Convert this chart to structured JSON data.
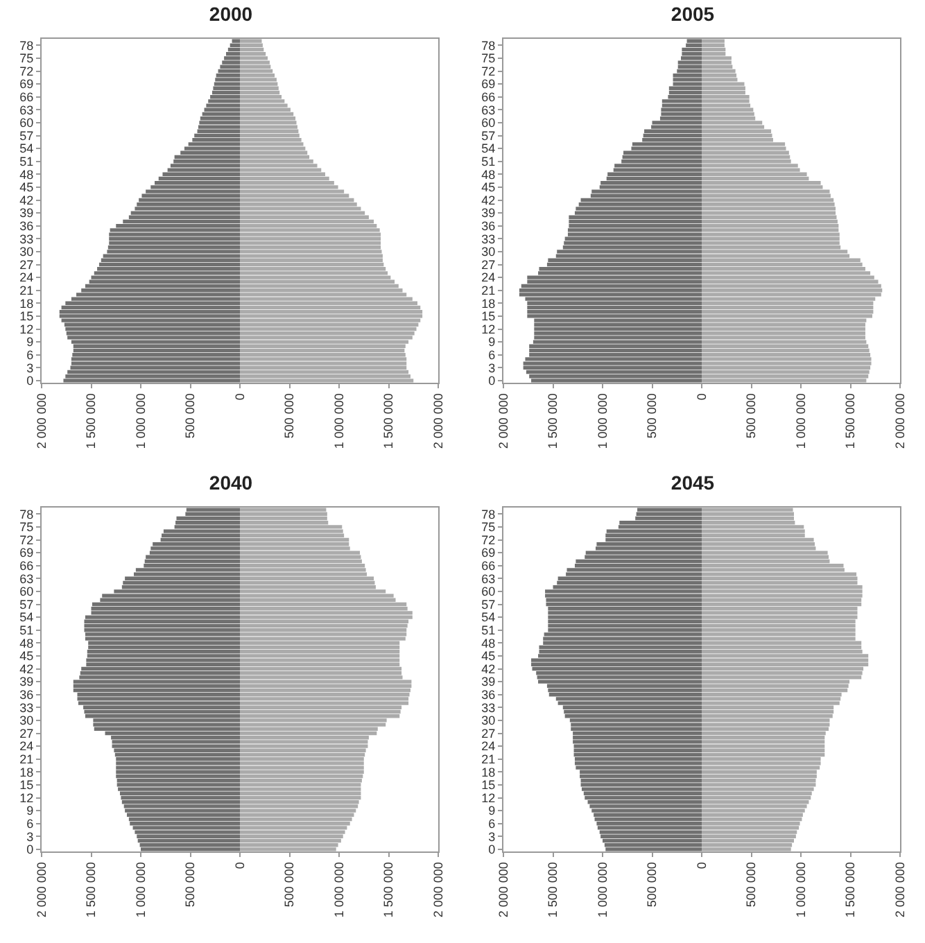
{
  "chart_data": [
    {
      "type": "bar",
      "title": "2000",
      "orientation": "horizontal",
      "stacked": true,
      "xlim": [
        -2000000,
        2000000
      ],
      "xticks": [
        {
          "value": -2000000,
          "label": "2 000 000"
        },
        {
          "value": -1500000,
          "label": "1 500 000"
        },
        {
          "value": -1000000,
          "label": "1 000 000"
        },
        {
          "value": -500000,
          "label": "500 000"
        },
        {
          "value": 0,
          "label": "0"
        },
        {
          "value": 500000,
          "label": "500 000"
        },
        {
          "value": 1000000,
          "label": "1 000 000"
        },
        {
          "value": 1500000,
          "label": "1 500 000"
        },
        {
          "value": 2000000,
          "label": "2 000 000"
        }
      ],
      "categories": [
        null,
        "78",
        null,
        null,
        "75",
        null,
        null,
        "72",
        null,
        null,
        "69",
        null,
        null,
        "66",
        null,
        null,
        "63",
        null,
        null,
        "60",
        null,
        null,
        "57",
        null,
        null,
        "54",
        null,
        null,
        "51",
        null,
        null,
        "48",
        null,
        null,
        "45",
        null,
        null,
        "42",
        null,
        null,
        "39",
        null,
        null,
        "36",
        null,
        null,
        "33",
        null,
        null,
        "30",
        null,
        null,
        "27",
        null,
        null,
        "24",
        null,
        null,
        "21",
        null,
        null,
        "18",
        null,
        null,
        "15",
        null,
        null,
        "12",
        null,
        null,
        "9",
        null,
        null,
        "6",
        null,
        null,
        "3",
        null,
        null,
        "0"
      ],
      "series": [
        {
          "color": "#707070",
          "values": [
            -80000,
            -100000,
            -120000,
            -140000,
            -160000,
            -180000,
            -200000,
            -220000,
            -240000,
            -250000,
            -260000,
            -270000,
            -280000,
            -300000,
            -320000,
            -340000,
            -360000,
            -380000,
            -400000,
            -410000,
            -420000,
            -430000,
            -460000,
            -480000,
            -520000,
            -560000,
            -600000,
            -660000,
            -670000,
            -700000,
            -730000,
            -780000,
            -820000,
            -860000,
            -900000,
            -950000,
            -990000,
            -1020000,
            -1040000,
            -1060000,
            -1100000,
            -1120000,
            -1180000,
            -1250000,
            -1310000,
            -1320000,
            -1320000,
            -1320000,
            -1330000,
            -1340000,
            -1380000,
            -1400000,
            -1420000,
            -1440000,
            -1470000,
            -1500000,
            -1520000,
            -1560000,
            -1600000,
            -1650000,
            -1700000,
            -1760000,
            -1800000,
            -1820000,
            -1820000,
            -1800000,
            -1770000,
            -1760000,
            -1750000,
            -1740000,
            -1700000,
            -1680000,
            -1680000,
            -1690000,
            -1700000,
            -1700000,
            -1710000,
            -1740000,
            -1760000,
            -1780000
          ]
        },
        {
          "color": "#ababab",
          "values": [
            220000,
            230000,
            240000,
            260000,
            280000,
            300000,
            310000,
            330000,
            350000,
            370000,
            380000,
            390000,
            400000,
            420000,
            450000,
            480000,
            510000,
            540000,
            560000,
            570000,
            580000,
            590000,
            600000,
            620000,
            640000,
            660000,
            680000,
            700000,
            740000,
            780000,
            820000,
            860000,
            900000,
            950000,
            990000,
            1050000,
            1100000,
            1150000,
            1180000,
            1220000,
            1260000,
            1300000,
            1350000,
            1380000,
            1410000,
            1420000,
            1420000,
            1420000,
            1420000,
            1430000,
            1440000,
            1440000,
            1450000,
            1470000,
            1490000,
            1520000,
            1560000,
            1600000,
            1640000,
            1680000,
            1740000,
            1790000,
            1820000,
            1840000,
            1840000,
            1820000,
            1800000,
            1780000,
            1760000,
            1740000,
            1700000,
            1670000,
            1660000,
            1670000,
            1680000,
            1680000,
            1680000,
            1700000,
            1720000,
            1750000
          ]
        }
      ]
    },
    {
      "type": "bar",
      "title": "2005",
      "orientation": "horizontal",
      "stacked": true,
      "xlim": [
        -2000000,
        2000000
      ],
      "xticks": [
        {
          "value": -2000000,
          "label": "2 000 000"
        },
        {
          "value": -1500000,
          "label": "1 500 000"
        },
        {
          "value": -1000000,
          "label": "1 000 000"
        },
        {
          "value": -500000,
          "label": "500 000"
        },
        {
          "value": 0,
          "label": "0"
        },
        {
          "value": 500000,
          "label": "500 000"
        },
        {
          "value": 1000000,
          "label": "1 000 000"
        },
        {
          "value": 1500000,
          "label": "1 500 000"
        },
        {
          "value": 2000000,
          "label": "2 000 000"
        }
      ],
      "categories": [
        null,
        "78",
        null,
        null,
        "75",
        null,
        null,
        "72",
        null,
        null,
        "69",
        null,
        null,
        "66",
        null,
        null,
        "63",
        null,
        null,
        "60",
        null,
        null,
        "57",
        null,
        null,
        "54",
        null,
        null,
        "51",
        null,
        null,
        "48",
        null,
        null,
        "45",
        null,
        null,
        "42",
        null,
        null,
        "39",
        null,
        null,
        "36",
        null,
        null,
        "33",
        null,
        null,
        "30",
        null,
        null,
        "27",
        null,
        null,
        "24",
        null,
        null,
        "21",
        null,
        null,
        "18",
        null,
        null,
        "15",
        null,
        null,
        "12",
        null,
        null,
        "9",
        null,
        null,
        "6",
        null,
        null,
        "3",
        null,
        null,
        "0"
      ],
      "series": [
        {
          "color": "#707070",
          "values": [
            -150000,
            -160000,
            -200000,
            -200000,
            -210000,
            -240000,
            -240000,
            -250000,
            -290000,
            -290000,
            -290000,
            -330000,
            -330000,
            -340000,
            -400000,
            -400000,
            -410000,
            -410000,
            -420000,
            -500000,
            -510000,
            -580000,
            -590000,
            -600000,
            -700000,
            -710000,
            -790000,
            -800000,
            -810000,
            -880000,
            -890000,
            -950000,
            -960000,
            -1020000,
            -1030000,
            -1110000,
            -1120000,
            -1220000,
            -1240000,
            -1270000,
            -1280000,
            -1340000,
            -1340000,
            -1340000,
            -1350000,
            -1350000,
            -1380000,
            -1390000,
            -1400000,
            -1460000,
            -1470000,
            -1550000,
            -1560000,
            -1640000,
            -1650000,
            -1760000,
            -1760000,
            -1820000,
            -1840000,
            -1840000,
            -1780000,
            -1760000,
            -1760000,
            -1760000,
            -1760000,
            -1690000,
            -1690000,
            -1690000,
            -1690000,
            -1690000,
            -1700000,
            -1740000,
            -1740000,
            -1740000,
            -1780000,
            -1800000,
            -1800000,
            -1770000,
            -1740000,
            -1720000
          ]
        },
        {
          "color": "#ababab",
          "values": [
            230000,
            230000,
            240000,
            240000,
            300000,
            300000,
            310000,
            340000,
            350000,
            360000,
            430000,
            440000,
            440000,
            480000,
            480000,
            490000,
            520000,
            530000,
            540000,
            610000,
            630000,
            700000,
            710000,
            720000,
            840000,
            850000,
            880000,
            890000,
            900000,
            970000,
            990000,
            1060000,
            1080000,
            1200000,
            1220000,
            1290000,
            1300000,
            1330000,
            1340000,
            1350000,
            1350000,
            1360000,
            1370000,
            1380000,
            1380000,
            1390000,
            1390000,
            1390000,
            1400000,
            1470000,
            1490000,
            1600000,
            1620000,
            1650000,
            1700000,
            1740000,
            1780000,
            1810000,
            1820000,
            1810000,
            1750000,
            1730000,
            1730000,
            1730000,
            1720000,
            1660000,
            1650000,
            1650000,
            1650000,
            1650000,
            1660000,
            1680000,
            1690000,
            1700000,
            1710000,
            1710000,
            1700000,
            1690000,
            1680000,
            1660000
          ]
        }
      ]
    },
    {
      "type": "bar",
      "title": "2040",
      "orientation": "horizontal",
      "stacked": true,
      "xlim": [
        -2000000,
        2000000
      ],
      "xticks": [
        {
          "value": -2000000,
          "label": "2 000 000"
        },
        {
          "value": -1500000,
          "label": "1 500 000"
        },
        {
          "value": -1000000,
          "label": "1 000 000"
        },
        {
          "value": -500000,
          "label": "500 000"
        },
        {
          "value": 0,
          "label": "0"
        },
        {
          "value": 500000,
          "label": "500 000"
        },
        {
          "value": 1000000,
          "label": "1 000 000"
        },
        {
          "value": 1500000,
          "label": "1 500 000"
        },
        {
          "value": 2000000,
          "label": "2 000 000"
        }
      ],
      "categories": [
        null,
        "78",
        null,
        null,
        "75",
        null,
        null,
        "72",
        null,
        null,
        "69",
        null,
        null,
        "66",
        null,
        null,
        "63",
        null,
        null,
        "60",
        null,
        null,
        "57",
        null,
        null,
        "54",
        null,
        null,
        "51",
        null,
        null,
        "48",
        null,
        null,
        "45",
        null,
        null,
        "42",
        null,
        null,
        "39",
        null,
        null,
        "36",
        null,
        null,
        "33",
        null,
        null,
        "30",
        null,
        null,
        "27",
        null,
        null,
        "24",
        null,
        null,
        "21",
        null,
        null,
        "18",
        null,
        null,
        "15",
        null,
        null,
        "12",
        null,
        null,
        "9",
        null,
        null,
        "6",
        null,
        null,
        "3",
        null,
        null,
        "0"
      ],
      "series": [
        {
          "color": "#707070",
          "values": [
            -540000,
            -550000,
            -640000,
            -650000,
            -660000,
            -770000,
            -790000,
            -800000,
            -880000,
            -900000,
            -910000,
            -950000,
            -960000,
            -970000,
            -1050000,
            -1070000,
            -1160000,
            -1180000,
            -1190000,
            -1270000,
            -1390000,
            -1410000,
            -1490000,
            -1500000,
            -1500000,
            -1560000,
            -1570000,
            -1570000,
            -1570000,
            -1560000,
            -1560000,
            -1530000,
            -1530000,
            -1540000,
            -1540000,
            -1550000,
            -1550000,
            -1600000,
            -1610000,
            -1620000,
            -1680000,
            -1680000,
            -1680000,
            -1640000,
            -1640000,
            -1630000,
            -1580000,
            -1570000,
            -1560000,
            -1480000,
            -1480000,
            -1470000,
            -1360000,
            -1300000,
            -1290000,
            -1290000,
            -1270000,
            -1260000,
            -1250000,
            -1250000,
            -1250000,
            -1250000,
            -1250000,
            -1240000,
            -1240000,
            -1230000,
            -1210000,
            -1200000,
            -1190000,
            -1170000,
            -1160000,
            -1140000,
            -1120000,
            -1110000,
            -1080000,
            -1060000,
            -1040000,
            -1030000,
            -1010000,
            -1000000
          ]
        },
        {
          "color": "#ababab",
          "values": [
            870000,
            880000,
            880000,
            890000,
            1030000,
            1040000,
            1050000,
            1100000,
            1100000,
            1110000,
            1210000,
            1220000,
            1230000,
            1260000,
            1270000,
            1280000,
            1350000,
            1360000,
            1370000,
            1470000,
            1550000,
            1570000,
            1680000,
            1690000,
            1740000,
            1740000,
            1700000,
            1690000,
            1680000,
            1680000,
            1670000,
            1610000,
            1610000,
            1610000,
            1610000,
            1610000,
            1610000,
            1630000,
            1630000,
            1640000,
            1730000,
            1730000,
            1720000,
            1710000,
            1700000,
            1700000,
            1630000,
            1620000,
            1610000,
            1480000,
            1470000,
            1390000,
            1380000,
            1300000,
            1290000,
            1290000,
            1270000,
            1260000,
            1250000,
            1250000,
            1250000,
            1250000,
            1240000,
            1230000,
            1220000,
            1220000,
            1220000,
            1220000,
            1200000,
            1190000,
            1170000,
            1150000,
            1130000,
            1110000,
            1080000,
            1060000,
            1040000,
            1020000,
            990000,
            970000
          ]
        }
      ]
    },
    {
      "type": "bar",
      "title": "2045",
      "orientation": "horizontal",
      "stacked": true,
      "xlim": [
        -2000000,
        2000000
      ],
      "xticks": [
        {
          "value": -2000000,
          "label": "2 000 000"
        },
        {
          "value": -1500000,
          "label": "1 500 000"
        },
        {
          "value": -1000000,
          "label": "1 000 000"
        },
        {
          "value": -500000,
          "label": "500 000"
        },
        {
          "value": 0,
          "label": "0"
        },
        {
          "value": 500000,
          "label": "500 000"
        },
        {
          "value": 1000000,
          "label": "1 000 000"
        },
        {
          "value": 1500000,
          "label": "1 500 000"
        },
        {
          "value": 2000000,
          "label": "2 000 000"
        }
      ],
      "categories": [
        null,
        "78",
        null,
        null,
        "75",
        null,
        null,
        "72",
        null,
        null,
        "69",
        null,
        null,
        "66",
        null,
        null,
        "63",
        null,
        null,
        "60",
        null,
        null,
        "57",
        null,
        null,
        "54",
        null,
        null,
        "51",
        null,
        null,
        "48",
        null,
        null,
        "45",
        null,
        null,
        "42",
        null,
        null,
        "39",
        null,
        null,
        "36",
        null,
        null,
        "33",
        null,
        null,
        "30",
        null,
        null,
        "27",
        null,
        null,
        "24",
        null,
        null,
        "21",
        null,
        null,
        "18",
        null,
        null,
        "15",
        null,
        null,
        "12",
        null,
        null,
        "9",
        null,
        null,
        "6",
        null,
        null,
        "3",
        null,
        null,
        "0"
      ],
      "series": [
        {
          "color": "#707070",
          "values": [
            -650000,
            -660000,
            -670000,
            -830000,
            -840000,
            -960000,
            -970000,
            -970000,
            -1060000,
            -1070000,
            -1170000,
            -1180000,
            -1270000,
            -1280000,
            -1360000,
            -1370000,
            -1450000,
            -1460000,
            -1500000,
            -1580000,
            -1580000,
            -1570000,
            -1570000,
            -1550000,
            -1550000,
            -1550000,
            -1550000,
            -1550000,
            -1550000,
            -1590000,
            -1600000,
            -1600000,
            -1640000,
            -1640000,
            -1650000,
            -1720000,
            -1720000,
            -1710000,
            -1670000,
            -1660000,
            -1650000,
            -1560000,
            -1550000,
            -1540000,
            -1470000,
            -1450000,
            -1400000,
            -1390000,
            -1380000,
            -1330000,
            -1320000,
            -1320000,
            -1300000,
            -1300000,
            -1300000,
            -1290000,
            -1290000,
            -1290000,
            -1280000,
            -1280000,
            -1270000,
            -1230000,
            -1230000,
            -1220000,
            -1220000,
            -1210000,
            -1190000,
            -1180000,
            -1150000,
            -1130000,
            -1110000,
            -1090000,
            -1080000,
            -1060000,
            -1050000,
            -1030000,
            -1020000,
            -1000000,
            -980000,
            -970000
          ]
        },
        {
          "color": "#ababab",
          "values": [
            920000,
            930000,
            930000,
            940000,
            1030000,
            1040000,
            1040000,
            1130000,
            1140000,
            1150000,
            1270000,
            1280000,
            1290000,
            1430000,
            1440000,
            1560000,
            1570000,
            1570000,
            1620000,
            1620000,
            1620000,
            1610000,
            1610000,
            1570000,
            1570000,
            1570000,
            1550000,
            1550000,
            1550000,
            1550000,
            1550000,
            1610000,
            1610000,
            1620000,
            1680000,
            1680000,
            1680000,
            1630000,
            1620000,
            1610000,
            1490000,
            1480000,
            1470000,
            1410000,
            1400000,
            1390000,
            1330000,
            1330000,
            1320000,
            1290000,
            1290000,
            1280000,
            1250000,
            1240000,
            1240000,
            1240000,
            1240000,
            1240000,
            1200000,
            1200000,
            1190000,
            1160000,
            1160000,
            1150000,
            1150000,
            1130000,
            1110000,
            1100000,
            1080000,
            1060000,
            1040000,
            1020000,
            1010000,
            990000,
            980000,
            960000,
            950000,
            930000,
            910000,
            900000
          ]
        }
      ]
    }
  ]
}
